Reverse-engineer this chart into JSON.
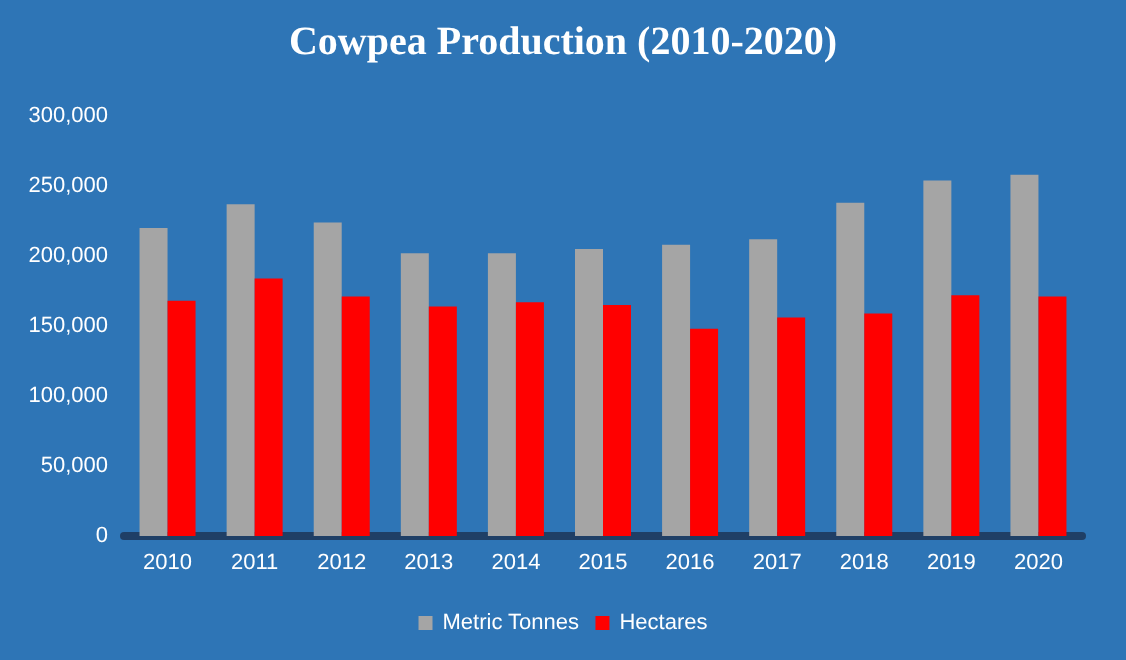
{
  "chart_data": {
    "type": "bar",
    "title": "Cowpea Production (2010-2020)",
    "categories": [
      "2010",
      "2011",
      "2012",
      "2013",
      "2014",
      "2015",
      "2016",
      "2017",
      "2018",
      "2019",
      "2020"
    ],
    "series": [
      {
        "name": "Metric Tonnes",
        "color": "#a5a5a5",
        "values": [
          220000,
          237000,
          224000,
          202000,
          202000,
          205000,
          208000,
          212000,
          238000,
          254000,
          258000
        ]
      },
      {
        "name": "Hectares",
        "color": "#ff0000",
        "values": [
          168000,
          184000,
          171000,
          164000,
          167000,
          165000,
          148000,
          156000,
          159000,
          172000,
          171000
        ]
      }
    ],
    "ylim": [
      0,
      300000
    ],
    "yticks": [
      0,
      {
        "value": 50000,
        "label": "50,000"
      },
      {
        "value": 100000,
        "label": "100,000"
      },
      {
        "value": 150000,
        "label": "150,000"
      },
      {
        "value": 200000,
        "label": "200,000"
      },
      {
        "value": 250000,
        "label": "250,000"
      },
      {
        "value": 300000,
        "label": "300,000"
      }
    ],
    "grid": false,
    "legend": "bottom"
  }
}
